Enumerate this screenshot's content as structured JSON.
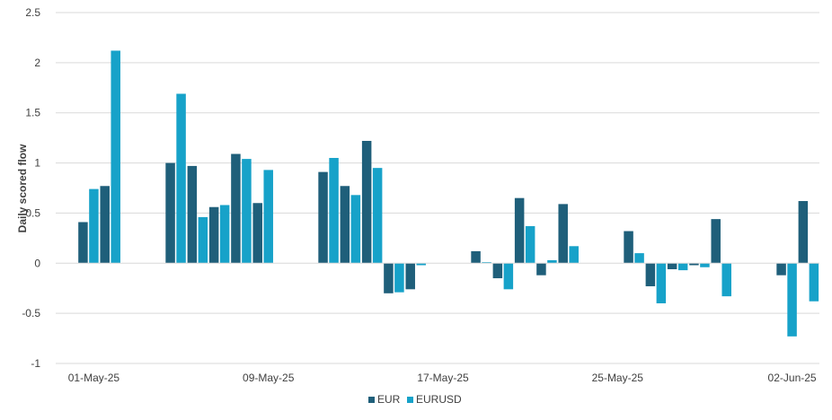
{
  "chart_data": {
    "type": "bar",
    "title": "",
    "xlabel": "",
    "ylabel": "Daily scored flow",
    "ylim": [
      -1,
      2.5
    ],
    "yticks": [
      2.5,
      2,
      1.5,
      1,
      0.5,
      0,
      -0.5,
      -1
    ],
    "ytick_labels": [
      "2.5",
      "2",
      "1.5",
      "1",
      "0.5",
      "0",
      "-0.5",
      "-1"
    ],
    "xtick_labels": [
      "01-May-25",
      "09-May-25",
      "17-May-25",
      "25-May-25",
      "02-Jun-25"
    ],
    "xtick_days": [
      1,
      9,
      17,
      25,
      33
    ],
    "x_domain_days": [
      0,
      34
    ],
    "grid": true,
    "legend_position": "bottom",
    "series": [
      {
        "name": "EUR",
        "color": "#1f5f7a",
        "points": [
          {
            "day": 1,
            "value": 0.41
          },
          {
            "day": 2,
            "value": 0.77
          },
          {
            "day": 5,
            "value": 1.0
          },
          {
            "day": 6,
            "value": 0.97
          },
          {
            "day": 7,
            "value": 0.56
          },
          {
            "day": 8,
            "value": 1.09
          },
          {
            "day": 9,
            "value": 0.6
          },
          {
            "day": 12,
            "value": 0.91
          },
          {
            "day": 13,
            "value": 0.77
          },
          {
            "day": 14,
            "value": 1.22
          },
          {
            "day": 15,
            "value": -0.3
          },
          {
            "day": 16,
            "value": -0.26
          },
          {
            "day": 19,
            "value": 0.12
          },
          {
            "day": 20,
            "value": -0.15
          },
          {
            "day": 21,
            "value": 0.65
          },
          {
            "day": 22,
            "value": -0.12
          },
          {
            "day": 23,
            "value": 0.59
          },
          {
            "day": 26,
            "value": 0.32
          },
          {
            "day": 27,
            "value": -0.23
          },
          {
            "day": 28,
            "value": -0.06
          },
          {
            "day": 29,
            "value": -0.02
          },
          {
            "day": 30,
            "value": 0.44
          },
          {
            "day": 33,
            "value": -0.12
          },
          {
            "day": 34,
            "value": 0.62
          }
        ]
      },
      {
        "name": "EURUSD",
        "color": "#17a2c9",
        "points": [
          {
            "day": 1,
            "value": 0.74
          },
          {
            "day": 2,
            "value": 2.12
          },
          {
            "day": 5,
            "value": 1.69
          },
          {
            "day": 6,
            "value": 0.46
          },
          {
            "day": 7,
            "value": 0.58
          },
          {
            "day": 8,
            "value": 1.04
          },
          {
            "day": 9,
            "value": 0.93
          },
          {
            "day": 12,
            "value": 1.05
          },
          {
            "day": 13,
            "value": 0.68
          },
          {
            "day": 14,
            "value": 0.95
          },
          {
            "day": 15,
            "value": -0.29
          },
          {
            "day": 16,
            "value": -0.02
          },
          {
            "day": 19,
            "value": 0.01
          },
          {
            "day": 20,
            "value": -0.26
          },
          {
            "day": 21,
            "value": 0.37
          },
          {
            "day": 22,
            "value": 0.03
          },
          {
            "day": 23,
            "value": 0.17
          },
          {
            "day": 26,
            "value": 0.1
          },
          {
            "day": 27,
            "value": -0.4
          },
          {
            "day": 28,
            "value": -0.07
          },
          {
            "day": 29,
            "value": -0.04
          },
          {
            "day": 30,
            "value": -0.33
          },
          {
            "day": 33,
            "value": -0.73
          },
          {
            "day": 34,
            "value": -0.38
          }
        ]
      }
    ]
  }
}
